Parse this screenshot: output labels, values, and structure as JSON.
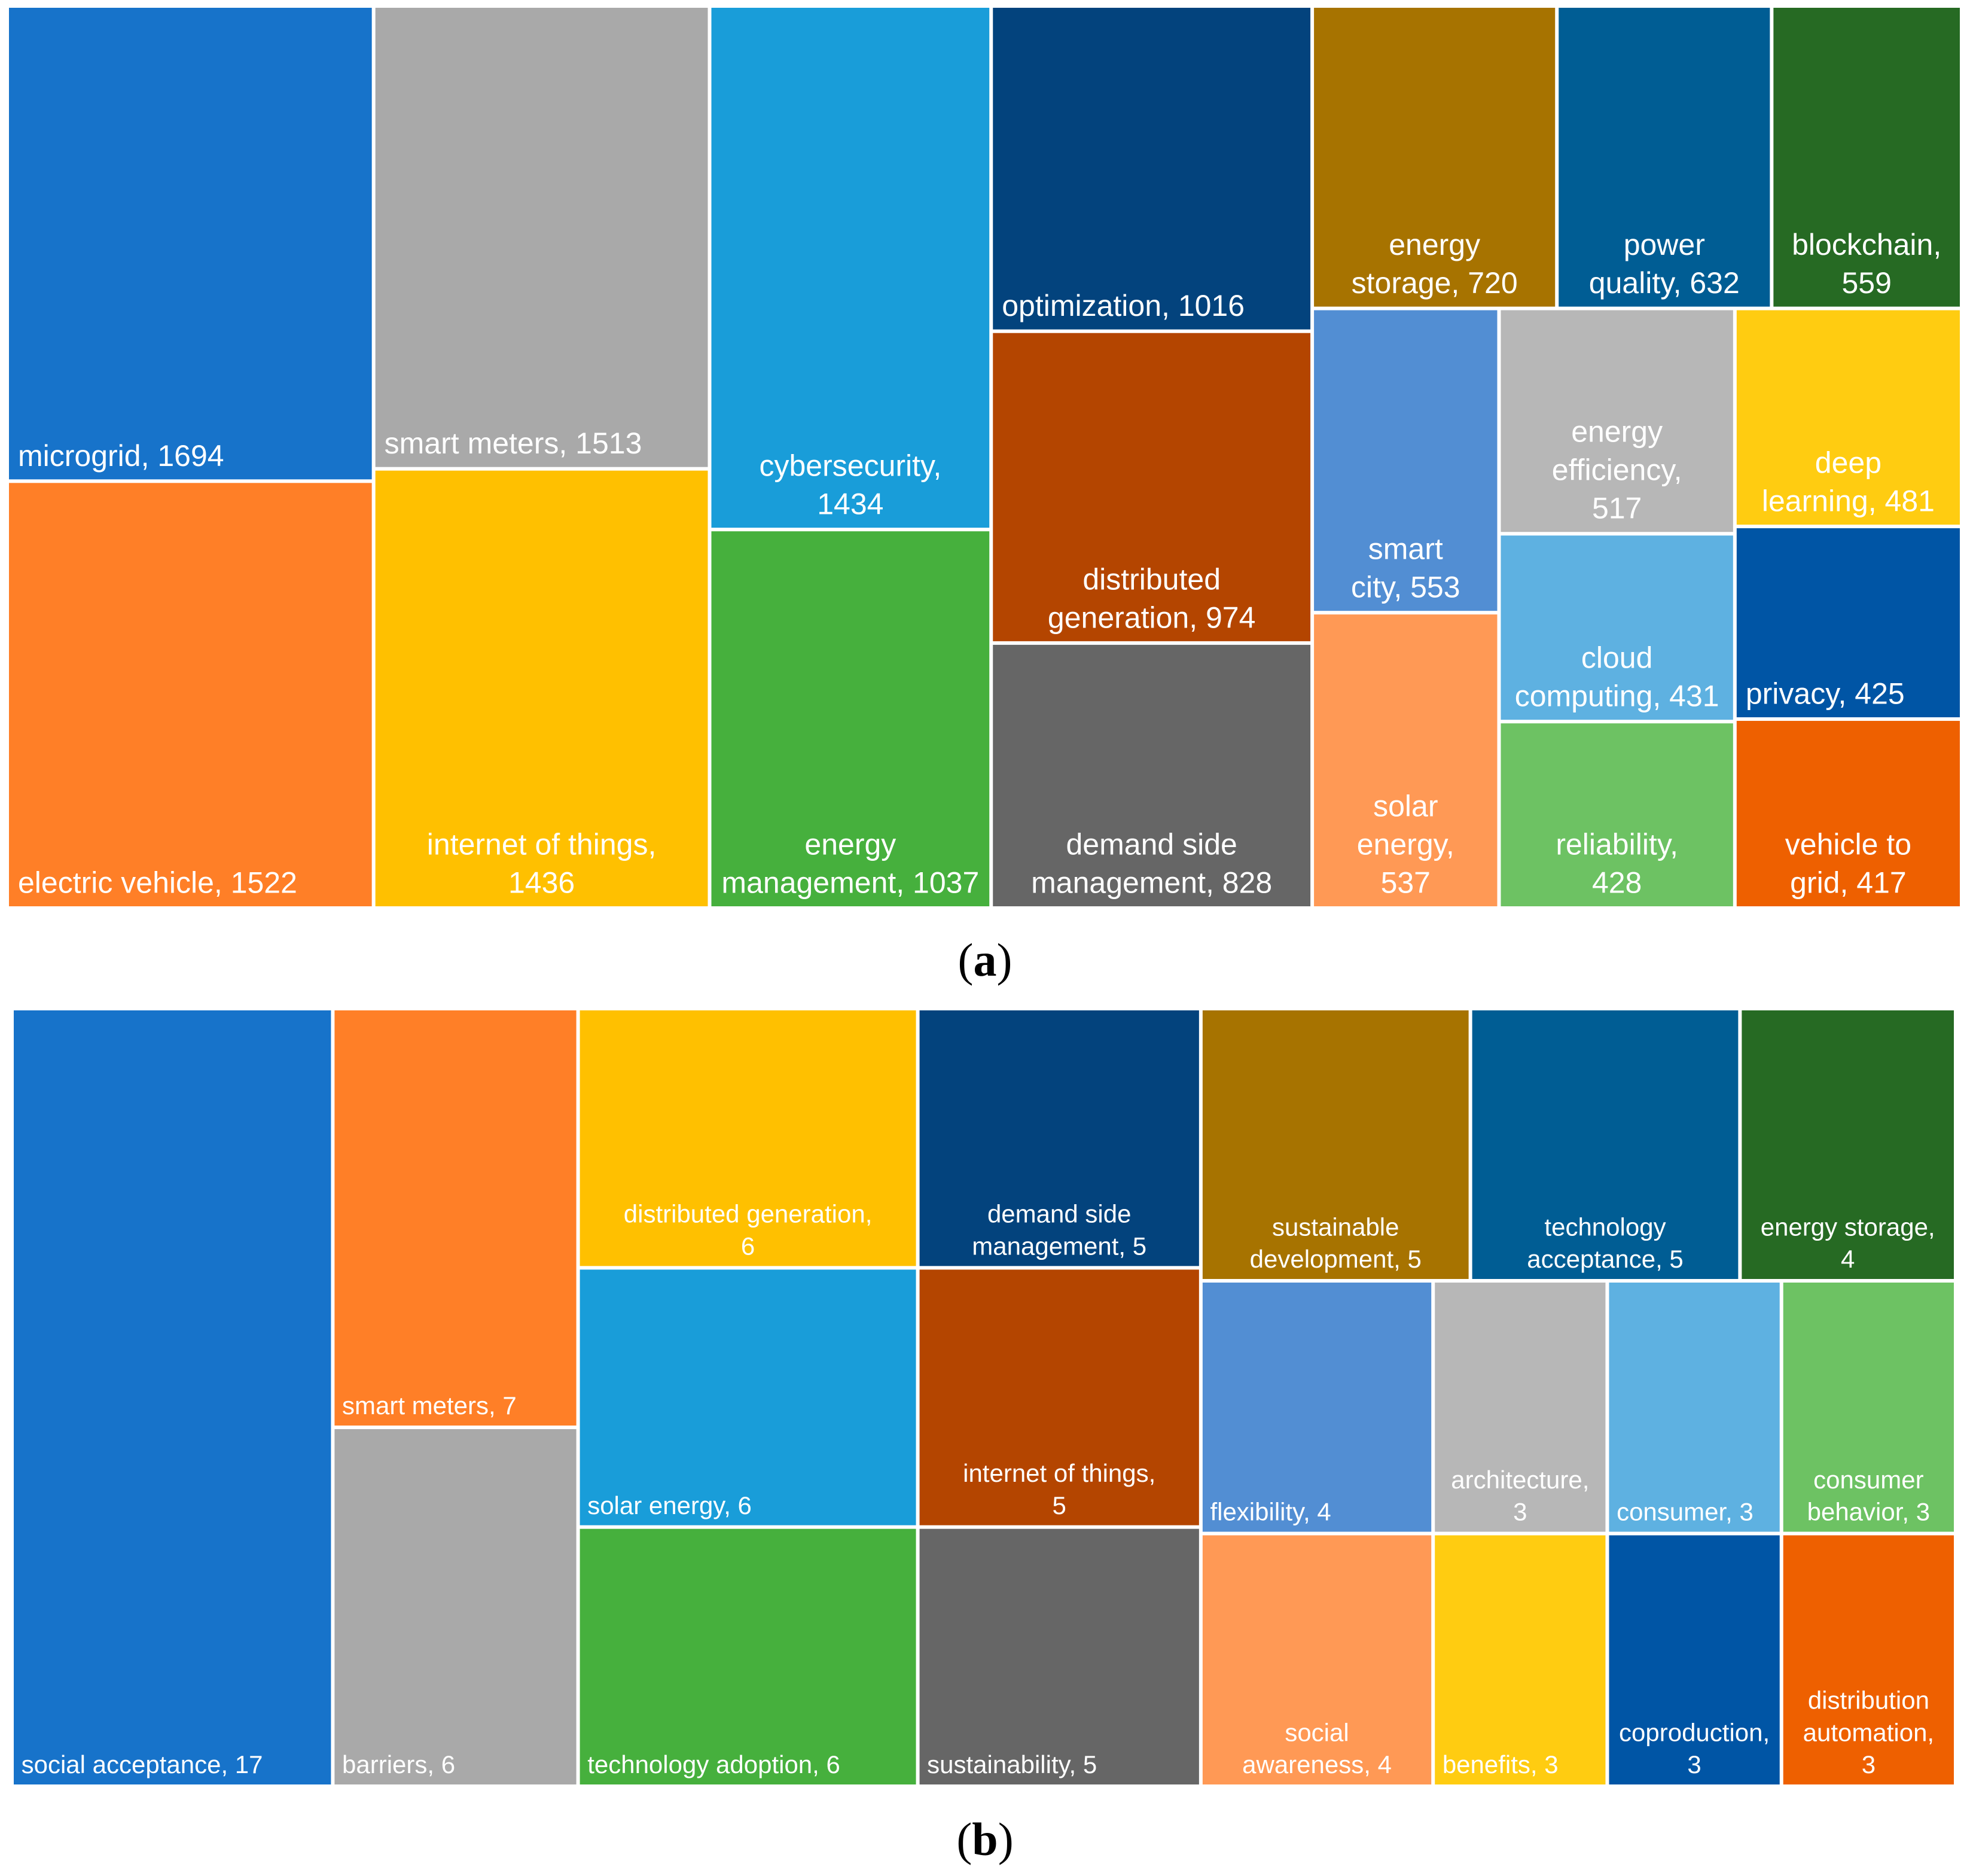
{
  "chart_data": [
    {
      "type": "treemap",
      "panel": "a",
      "title": "",
      "items": [
        {
          "label": "microgrid, 1694",
          "name": "microgrid",
          "value": 1694,
          "color": "#1773CA"
        },
        {
          "label": "electric vehicle, 1522",
          "name": "electric vehicle",
          "value": 1522,
          "color": "#FF7F27"
        },
        {
          "label": "smart meters, 1513",
          "name": "smart meters",
          "value": 1513,
          "color": "#A9A9A9"
        },
        {
          "label": "internet of things, 1436",
          "name": "internet of things",
          "value": 1436,
          "color": "#FFC000"
        },
        {
          "label": "cybersecurity, 1434",
          "name": "cybersecurity",
          "value": 1434,
          "color": "#199DD9"
        },
        {
          "label": "energy management, 1037",
          "name": "energy management",
          "value": 1037,
          "color": "#46B03D"
        },
        {
          "label": "optimization, 1016",
          "name": "optimization",
          "value": 1016,
          "color": "#03437D"
        },
        {
          "label": "distributed generation, 974",
          "name": "distributed generation",
          "value": 974,
          "color": "#B44500"
        },
        {
          "label": "demand side management, 828",
          "name": "demand side management",
          "value": 828,
          "color": "#666666"
        },
        {
          "label": "energy storage, 720",
          "name": "energy storage",
          "value": 720,
          "color": "#A77300"
        },
        {
          "label": "power quality, 632",
          "name": "power quality",
          "value": 632,
          "color": "#005D94"
        },
        {
          "label": "blockchain, 559",
          "name": "blockchain",
          "value": 559,
          "color": "#266A23"
        },
        {
          "label": "smart city, 553",
          "name": "smart city",
          "value": 553,
          "color": "#528ED3"
        },
        {
          "label": "solar energy, 537",
          "name": "solar energy",
          "value": 537,
          "color": "#FF9955"
        },
        {
          "label": "energy efficiency, 517",
          "name": "energy efficiency",
          "value": 517,
          "color": "#B7B7B7"
        },
        {
          "label": "deep learning, 481",
          "name": "deep learning",
          "value": 481,
          "color": "#FFCC11"
        },
        {
          "label": "cloud computing, 431",
          "name": "cloud computing",
          "value": 431,
          "color": "#5EB1E1"
        },
        {
          "label": "reliability, 428",
          "name": "reliability",
          "value": 428,
          "color": "#6DC263"
        },
        {
          "label": "privacy, 425",
          "name": "privacy",
          "value": 425,
          "color": "#0055A5"
        },
        {
          "label": "vehicle to grid, 417",
          "name": "vehicle to grid",
          "value": 417,
          "color": "#EE6000"
        }
      ],
      "caption_open": "(",
      "caption_letter": "a",
      "caption_close": ")"
    },
    {
      "type": "treemap",
      "panel": "b",
      "title": "",
      "items": [
        {
          "label": "social acceptance, 17",
          "name": "social acceptance",
          "value": 17,
          "color": "#1773CA"
        },
        {
          "label": "smart meters, 7",
          "name": "smart meters",
          "value": 7,
          "color": "#FF7F27"
        },
        {
          "label": "barriers, 6",
          "name": "barriers",
          "value": 6,
          "color": "#A9A9A9"
        },
        {
          "label": "distributed generation, 6",
          "name": "distributed generation",
          "value": 6,
          "color": "#FFC000"
        },
        {
          "label": "solar energy, 6",
          "name": "solar energy",
          "value": 6,
          "color": "#199DD9"
        },
        {
          "label": "technology adoption, 6",
          "name": "technology adoption",
          "value": 6,
          "color": "#46B03D"
        },
        {
          "label": "demand side management, 5",
          "name": "demand side management",
          "value": 5,
          "color": "#03437D"
        },
        {
          "label": "internet of things, 5",
          "name": "internet of things",
          "value": 5,
          "color": "#B44500"
        },
        {
          "label": "sustainability, 5",
          "name": "sustainability",
          "value": 5,
          "color": "#666666"
        },
        {
          "label": "sustainable development, 5",
          "name": "sustainable development",
          "value": 5,
          "color": "#A77300"
        },
        {
          "label": "technology acceptance, 5",
          "name": "technology acceptance",
          "value": 5,
          "color": "#005D94"
        },
        {
          "label": "energy storage, 4",
          "name": "energy storage",
          "value": 4,
          "color": "#266A23"
        },
        {
          "label": "flexibility, 4",
          "name": "flexibility",
          "value": 4,
          "color": "#528ED3"
        },
        {
          "label": "social awareness, 4",
          "name": "social awareness",
          "value": 4,
          "color": "#FF9955"
        },
        {
          "label": "architecture, 3",
          "name": "architecture",
          "value": 3,
          "color": "#B7B7B7"
        },
        {
          "label": "benefits, 3",
          "name": "benefits",
          "value": 3,
          "color": "#FFCC11"
        },
        {
          "label": "consumer, 3",
          "name": "consumer",
          "value": 3,
          "color": "#5EB1E1"
        },
        {
          "label": "consumer behavior, 3",
          "name": "consumer behavior",
          "value": 3,
          "color": "#6DC263"
        },
        {
          "label": "coproduction, 3",
          "name": "coproduction",
          "value": 3,
          "color": "#0055A5"
        },
        {
          "label": "distribution automation, 3",
          "name": "distribution automation",
          "value": 3,
          "color": "#EE6000"
        }
      ],
      "caption_open": "(",
      "caption_letter": "b",
      "caption_close": ")"
    }
  ]
}
